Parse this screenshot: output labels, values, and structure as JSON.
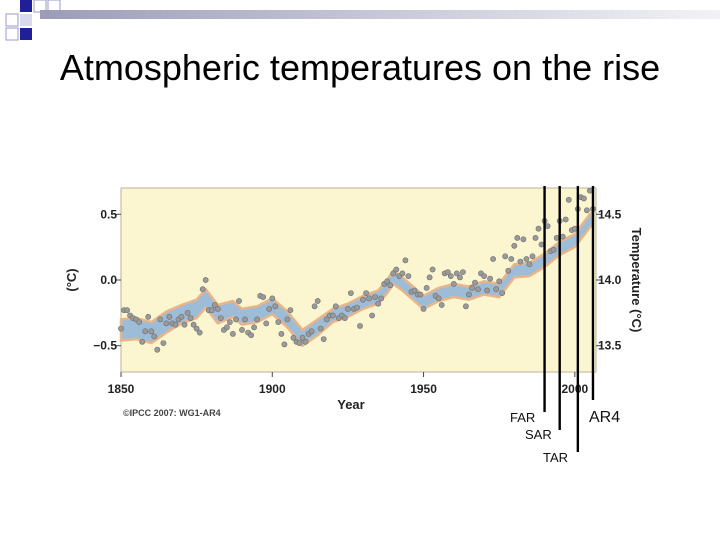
{
  "slide": {
    "title": "Atmospheric temperatures on the rise"
  },
  "colors": {
    "plot_background": "#fbf6d0",
    "uncertainty_band": "#9dbcd8",
    "band_edge": "#e8b48a",
    "points": "#9a9a9a",
    "corner_squares": "#1f1f9a"
  },
  "chart_data": {
    "type": "scatter",
    "xlabel": "Year",
    "ylabel_left": "(°C)",
    "ylabel_right": "Temperature (°C)",
    "xlim": [
      1850,
      2007
    ],
    "ylim": [
      -0.7,
      0.7
    ],
    "x_ticks": [
      {
        "value": 1850,
        "label": "1850"
      },
      {
        "value": 1900,
        "label": "1900"
      },
      {
        "value": 1950,
        "label": "1950"
      },
      {
        "value": 2000,
        "label": "2000"
      }
    ],
    "y_ticks_left": [
      {
        "value": 0.5,
        "label": "0.5"
      },
      {
        "value": 0.0,
        "label": "0.0"
      },
      {
        "value": -0.5,
        "label": "−0.5"
      }
    ],
    "y_ticks_right": [
      {
        "value": 0.5,
        "label": "14.5"
      },
      {
        "value": 0.0,
        "label": "14.0"
      },
      {
        "value": -0.5,
        "label": "13.5"
      }
    ],
    "credit": "©IPCC 2007: WG1-AR4",
    "report_lines": [
      {
        "year": 1990,
        "label": "FAR"
      },
      {
        "year": 1995,
        "label": "SAR"
      },
      {
        "year": 2001,
        "label": "TAR"
      },
      {
        "year": 2006,
        "label": "AR4"
      }
    ],
    "smoothed": {
      "x": [
        1850,
        1855,
        1860,
        1865,
        1870,
        1875,
        1878,
        1882,
        1887,
        1890,
        1895,
        1900,
        1905,
        1910,
        1915,
        1920,
        1925,
        1930,
        1935,
        1938,
        1940,
        1943,
        1945,
        1950,
        1955,
        1960,
        1965,
        1970,
        1975,
        1980,
        1985,
        1990,
        1995,
        2000,
        2005,
        2006
      ],
      "y": [
        -0.38,
        -0.37,
        -0.4,
        -0.32,
        -0.26,
        -0.22,
        -0.14,
        -0.26,
        -0.22,
        -0.28,
        -0.26,
        -0.2,
        -0.3,
        -0.44,
        -0.36,
        -0.27,
        -0.23,
        -0.17,
        -0.13,
        -0.05,
        0.02,
        -0.03,
        -0.07,
        -0.17,
        -0.11,
        -0.08,
        -0.1,
        -0.06,
        -0.08,
        0.07,
        0.08,
        0.15,
        0.24,
        0.3,
        0.45,
        0.47
      ]
    },
    "band_halfwidth": [
      0.08,
      0.08,
      0.08,
      0.08,
      0.07,
      0.07,
      0.07,
      0.07,
      0.06,
      0.06,
      0.06,
      0.06,
      0.06,
      0.06,
      0.06,
      0.05,
      0.05,
      0.05,
      0.05,
      0.05,
      0.05,
      0.05,
      0.05,
      0.05,
      0.05,
      0.05,
      0.05,
      0.05,
      0.05,
      0.05,
      0.05,
      0.05,
      0.05,
      0.05,
      0.05,
      0.05
    ],
    "annual": {
      "x": [
        1850,
        1851,
        1852,
        1853,
        1854,
        1855,
        1856,
        1857,
        1858,
        1859,
        1860,
        1861,
        1862,
        1863,
        1864,
        1865,
        1866,
        1867,
        1868,
        1869,
        1870,
        1871,
        1872,
        1873,
        1874,
        1875,
        1876,
        1877,
        1878,
        1879,
        1880,
        1881,
        1882,
        1883,
        1884,
        1885,
        1886,
        1887,
        1888,
        1889,
        1890,
        1891,
        1892,
        1893,
        1894,
        1895,
        1896,
        1897,
        1898,
        1899,
        1900,
        1901,
        1902,
        1903,
        1904,
        1905,
        1906,
        1907,
        1908,
        1909,
        1910,
        1911,
        1912,
        1913,
        1914,
        1915,
        1916,
        1917,
        1918,
        1919,
        1920,
        1921,
        1922,
        1923,
        1924,
        1925,
        1926,
        1927,
        1928,
        1929,
        1930,
        1931,
        1932,
        1933,
        1934,
        1935,
        1936,
        1937,
        1938,
        1939,
        1940,
        1941,
        1942,
        1943,
        1944,
        1945,
        1946,
        1947,
        1948,
        1949,
        1950,
        1951,
        1952,
        1953,
        1954,
        1955,
        1956,
        1957,
        1958,
        1959,
        1960,
        1961,
        1962,
        1963,
        1964,
        1965,
        1966,
        1967,
        1968,
        1969,
        1970,
        1971,
        1972,
        1973,
        1974,
        1975,
        1976,
        1977,
        1978,
        1979,
        1980,
        1981,
        1982,
        1983,
        1984,
        1985,
        1986,
        1987,
        1988,
        1989,
        1990,
        1991,
        1992,
        1993,
        1994,
        1995,
        1996,
        1997,
        1998,
        1999,
        2000,
        2001,
        2002,
        2003,
        2004,
        2005,
        2006
      ],
      "y": [
        -0.37,
        -0.23,
        -0.23,
        -0.27,
        -0.29,
        -0.3,
        -0.32,
        -0.47,
        -0.39,
        -0.28,
        -0.39,
        -0.43,
        -0.53,
        -0.3,
        -0.48,
        -0.33,
        -0.28,
        -0.33,
        -0.34,
        -0.3,
        -0.28,
        -0.34,
        -0.25,
        -0.29,
        -0.34,
        -0.37,
        -0.4,
        -0.07,
        0.0,
        -0.23,
        -0.23,
        -0.19,
        -0.22,
        -0.29,
        -0.38,
        -0.36,
        -0.32,
        -0.41,
        -0.3,
        -0.16,
        -0.38,
        -0.3,
        -0.4,
        -0.42,
        -0.36,
        -0.3,
        -0.12,
        -0.13,
        -0.33,
        -0.22,
        -0.14,
        -0.2,
        -0.32,
        -0.41,
        -0.49,
        -0.3,
        -0.23,
        -0.44,
        -0.47,
        -0.48,
        -0.44,
        -0.47,
        -0.41,
        -0.39,
        -0.2,
        -0.16,
        -0.37,
        -0.45,
        -0.3,
        -0.27,
        -0.27,
        -0.2,
        -0.29,
        -0.27,
        -0.29,
        -0.22,
        -0.1,
        -0.22,
        -0.21,
        -0.35,
        -0.15,
        -0.1,
        -0.14,
        -0.27,
        -0.13,
        -0.18,
        -0.14,
        -0.03,
        -0.01,
        -0.04,
        0.05,
        0.08,
        0.03,
        0.05,
        0.15,
        0.03,
        -0.09,
        -0.08,
        -0.11,
        -0.11,
        -0.22,
        -0.06,
        0.02,
        0.08,
        -0.12,
        -0.14,
        -0.19,
        0.05,
        0.06,
        0.03,
        -0.03,
        0.05,
        0.02,
        0.06,
        -0.2,
        -0.11,
        -0.06,
        -0.02,
        -0.07,
        0.05,
        0.03,
        -0.08,
        0.01,
        0.16,
        -0.07,
        -0.01,
        -0.1,
        0.18,
        0.07,
        0.16,
        0.26,
        0.32,
        0.14,
        0.31,
        0.16,
        0.12,
        0.18,
        0.32,
        0.39,
        0.27,
        0.45,
        0.41,
        0.22,
        0.23,
        0.32,
        0.45,
        0.33,
        0.46,
        0.61,
        0.38,
        0.39,
        0.54,
        0.63,
        0.62,
        0.53,
        0.68,
        0.54
      ]
    }
  }
}
